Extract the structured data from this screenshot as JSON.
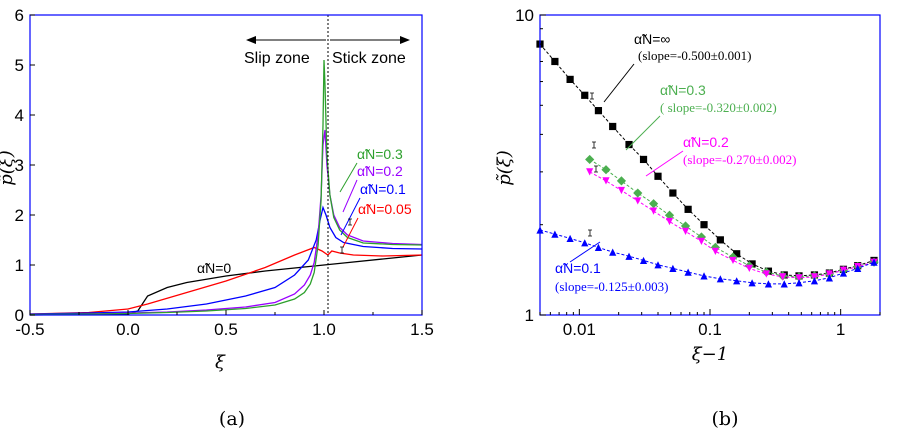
{
  "chart_data": [
    {
      "type": "line",
      "caption": "(a)",
      "xlabel": "ξ",
      "ylabel": "p̃(ξ)",
      "xlim": [
        -0.5,
        1.5
      ],
      "ylim": [
        0,
        6
      ],
      "xticks": [
        "-0.5",
        "0.0",
        "0.5",
        "1.0",
        "1.5"
      ],
      "yticks": [
        "0",
        "1",
        "2",
        "3",
        "4",
        "5",
        "6"
      ],
      "zone_labels": {
        "slip": "Slip zone",
        "stick": "Stick zone"
      },
      "series": [
        {
          "name": "α̃N=0",
          "color": "#000000",
          "x": [
            -0.5,
            -0.2,
            0.0,
            0.05,
            0.1,
            0.2,
            0.3,
            0.5,
            0.7,
            0.9,
            1.0,
            1.1,
            1.3,
            1.5
          ],
          "y": [
            0.0,
            0.01,
            0.02,
            0.08,
            0.38,
            0.55,
            0.65,
            0.78,
            0.88,
            0.96,
            1.0,
            1.04,
            1.12,
            1.2
          ]
        },
        {
          "name": "α̃N=0.05",
          "color": "#ff0000",
          "x": [
            -0.5,
            -0.2,
            0.0,
            0.1,
            0.3,
            0.5,
            0.7,
            0.85,
            0.95,
            0.99,
            1.02,
            1.04,
            1.08,
            1.15,
            1.3,
            1.5
          ],
          "y": [
            0.02,
            0.05,
            0.12,
            0.22,
            0.45,
            0.68,
            0.95,
            1.2,
            1.35,
            1.28,
            1.2,
            1.28,
            1.24,
            1.2,
            1.18,
            1.2
          ]
        },
        {
          "name": "α̃N=0.1",
          "color": "#0000ff",
          "x": [
            -0.5,
            -0.2,
            0.0,
            0.2,
            0.4,
            0.6,
            0.75,
            0.85,
            0.92,
            0.96,
            0.98,
            0.995,
            1.01,
            1.03,
            1.06,
            1.1,
            1.2,
            1.35,
            1.5
          ],
          "y": [
            0.02,
            0.04,
            0.06,
            0.12,
            0.22,
            0.38,
            0.55,
            0.8,
            1.1,
            1.5,
            1.9,
            2.15,
            2.0,
            1.75,
            1.55,
            1.45,
            1.37,
            1.33,
            1.32
          ]
        },
        {
          "name": "α̃N=0.2",
          "color": "#9900ff",
          "x": [
            -0.5,
            -0.2,
            0.0,
            0.2,
            0.4,
            0.6,
            0.75,
            0.85,
            0.9,
            0.93,
            0.95,
            0.97,
            0.985,
            0.995,
            1.005,
            1.015,
            1.03,
            1.05,
            1.08,
            1.12,
            1.2,
            1.35,
            1.5
          ],
          "y": [
            0.01,
            0.02,
            0.04,
            0.06,
            0.1,
            0.16,
            0.25,
            0.42,
            0.6,
            0.8,
            1.05,
            1.6,
            2.4,
            3.4,
            3.7,
            3.0,
            2.4,
            2.0,
            1.75,
            1.6,
            1.48,
            1.43,
            1.41
          ]
        },
        {
          "name": "α̃N=0.3",
          "color": "#2ca02c",
          "x": [
            -0.5,
            -0.2,
            0.0,
            0.2,
            0.4,
            0.6,
            0.75,
            0.85,
            0.9,
            0.93,
            0.95,
            0.97,
            0.985,
            0.995,
            1.0,
            1.005,
            1.015,
            1.03,
            1.05,
            1.08,
            1.12,
            1.2,
            1.35,
            1.5
          ],
          "y": [
            0.01,
            0.02,
            0.03,
            0.05,
            0.08,
            0.13,
            0.2,
            0.32,
            0.45,
            0.62,
            0.85,
            1.4,
            2.3,
            3.8,
            5.1,
            4.6,
            3.2,
            2.4,
            1.95,
            1.7,
            1.55,
            1.44,
            1.41,
            1.4
          ]
        }
      ],
      "annotations": [
        "α̃N=0.3",
        "α̃N=0.2",
        "α̃N=0.1",
        "α̃N=0.05",
        "α̃N=0"
      ]
    },
    {
      "type": "scatter",
      "caption": "(b)",
      "xlabel": "ξ−1",
      "ylabel": "p̃(ξ)",
      "xscale": "log",
      "yscale": "log",
      "xlim": [
        0.005,
        2
      ],
      "ylim": [
        1,
        10
      ],
      "xticks": [
        "0.01",
        "0.1",
        "1"
      ],
      "yticks": [
        "1",
        "10"
      ],
      "series": [
        {
          "name": "α̃N=∞",
          "slope_text": "(slope=-0.500±0.001)",
          "color": "#000000",
          "marker": "square",
          "exponent": -0.5,
          "x": [
            0.005,
            0.0065,
            0.0085,
            0.011,
            0.014,
            0.018,
            0.024,
            0.031,
            0.04,
            0.052,
            0.068,
            0.09,
            0.12,
            0.16,
            0.21,
            0.28,
            0.37,
            0.48,
            0.63,
            0.82,
            1.05,
            1.35,
            1.8
          ],
          "y": [
            8.0,
            7.0,
            6.1,
            5.4,
            4.8,
            4.25,
            3.7,
            3.3,
            2.9,
            2.55,
            2.25,
            2.0,
            1.78,
            1.6,
            1.48,
            1.4,
            1.36,
            1.35,
            1.36,
            1.38,
            1.42,
            1.46,
            1.52
          ]
        },
        {
          "name": "α̃N=0.3",
          "slope_text": "( slope=-0.320±0.002)",
          "color": "#4caf50",
          "marker": "diamond",
          "exponent": -0.32,
          "x": [
            0.012,
            0.016,
            0.021,
            0.028,
            0.037,
            0.049,
            0.065,
            0.086,
            0.11,
            0.15,
            0.2,
            0.27,
            0.36,
            0.48,
            0.63,
            0.82,
            1.05,
            1.35,
            1.8
          ],
          "y": [
            3.3,
            3.05,
            2.8,
            2.55,
            2.35,
            2.15,
            1.98,
            1.82,
            1.68,
            1.56,
            1.46,
            1.39,
            1.35,
            1.34,
            1.35,
            1.37,
            1.41,
            1.45,
            1.5
          ]
        },
        {
          "name": "α̃N=0.2",
          "slope_text": "(slope=-0.270±0.002)",
          "color": "#ff00ff",
          "marker": "triangle-down",
          "exponent": -0.27,
          "x": [
            0.012,
            0.016,
            0.021,
            0.028,
            0.037,
            0.049,
            0.065,
            0.086,
            0.11,
            0.15,
            0.2,
            0.27,
            0.36,
            0.48,
            0.63,
            0.82,
            1.05,
            1.35,
            1.8
          ],
          "y": [
            3.0,
            2.8,
            2.6,
            2.4,
            2.22,
            2.05,
            1.9,
            1.76,
            1.63,
            1.52,
            1.43,
            1.37,
            1.34,
            1.33,
            1.34,
            1.37,
            1.41,
            1.45,
            1.5
          ]
        },
        {
          "name": "α̃N=0.1",
          "slope_text": "(slope=-0.125±0.003)",
          "color": "#0000ff",
          "marker": "triangle-up",
          "exponent": -0.125,
          "x": [
            0.005,
            0.0065,
            0.0085,
            0.011,
            0.014,
            0.018,
            0.024,
            0.031,
            0.04,
            0.052,
            0.068,
            0.09,
            0.12,
            0.16,
            0.21,
            0.28,
            0.37,
            0.48,
            0.63,
            0.82,
            1.05,
            1.35,
            1.8
          ],
          "y": [
            1.92,
            1.86,
            1.8,
            1.74,
            1.68,
            1.62,
            1.57,
            1.52,
            1.47,
            1.43,
            1.39,
            1.35,
            1.32,
            1.3,
            1.28,
            1.27,
            1.27,
            1.28,
            1.3,
            1.33,
            1.38,
            1.43,
            1.5
          ]
        }
      ]
    }
  ]
}
